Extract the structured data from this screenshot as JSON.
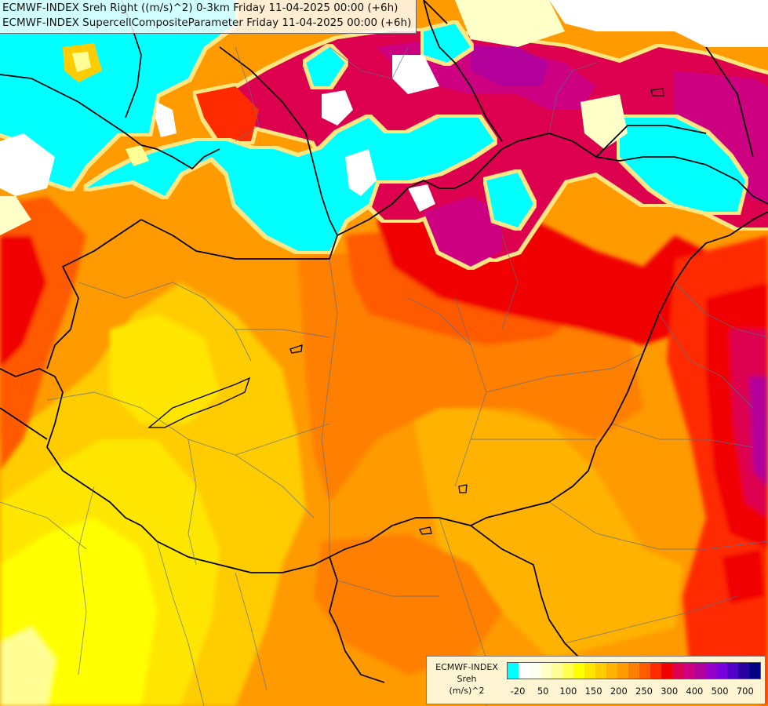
{
  "header": {
    "line1": "ECMWF-INDEX Sreh Right ((m/s)^2) 0-3km Friday 11-04-2025 00:00 (+6h)",
    "line2": "ECMWF-INDEX SupercellCompositeParameter Friday 11-04-2025 00:00 (+6h)"
  },
  "legend": {
    "title": "ECMWF-INDEX",
    "variable": "Sreh",
    "unit": "(m/s)^2",
    "colors": [
      "#00ffff",
      "#ffffff",
      "#fffff0",
      "#ffffc8",
      "#ffff96",
      "#ffff50",
      "#ffff00",
      "#ffe600",
      "#ffcc00",
      "#ffb300",
      "#ff9a00",
      "#ff7f00",
      "#ff5a00",
      "#ff2a00",
      "#f00000",
      "#dc0050",
      "#cc0080",
      "#b4009a",
      "#9600c8",
      "#7800dc",
      "#5000c8",
      "#2800a0",
      "#000080"
    ],
    "ticks": [
      "-20",
      "50",
      "100",
      "150",
      "200",
      "250",
      "300",
      "400",
      "500",
      "700"
    ],
    "tick_index": [
      0.5,
      2.5,
      4.5,
      6.5,
      8.5,
      10.5,
      12.5,
      14.5,
      16.5,
      18.5
    ]
  }
}
